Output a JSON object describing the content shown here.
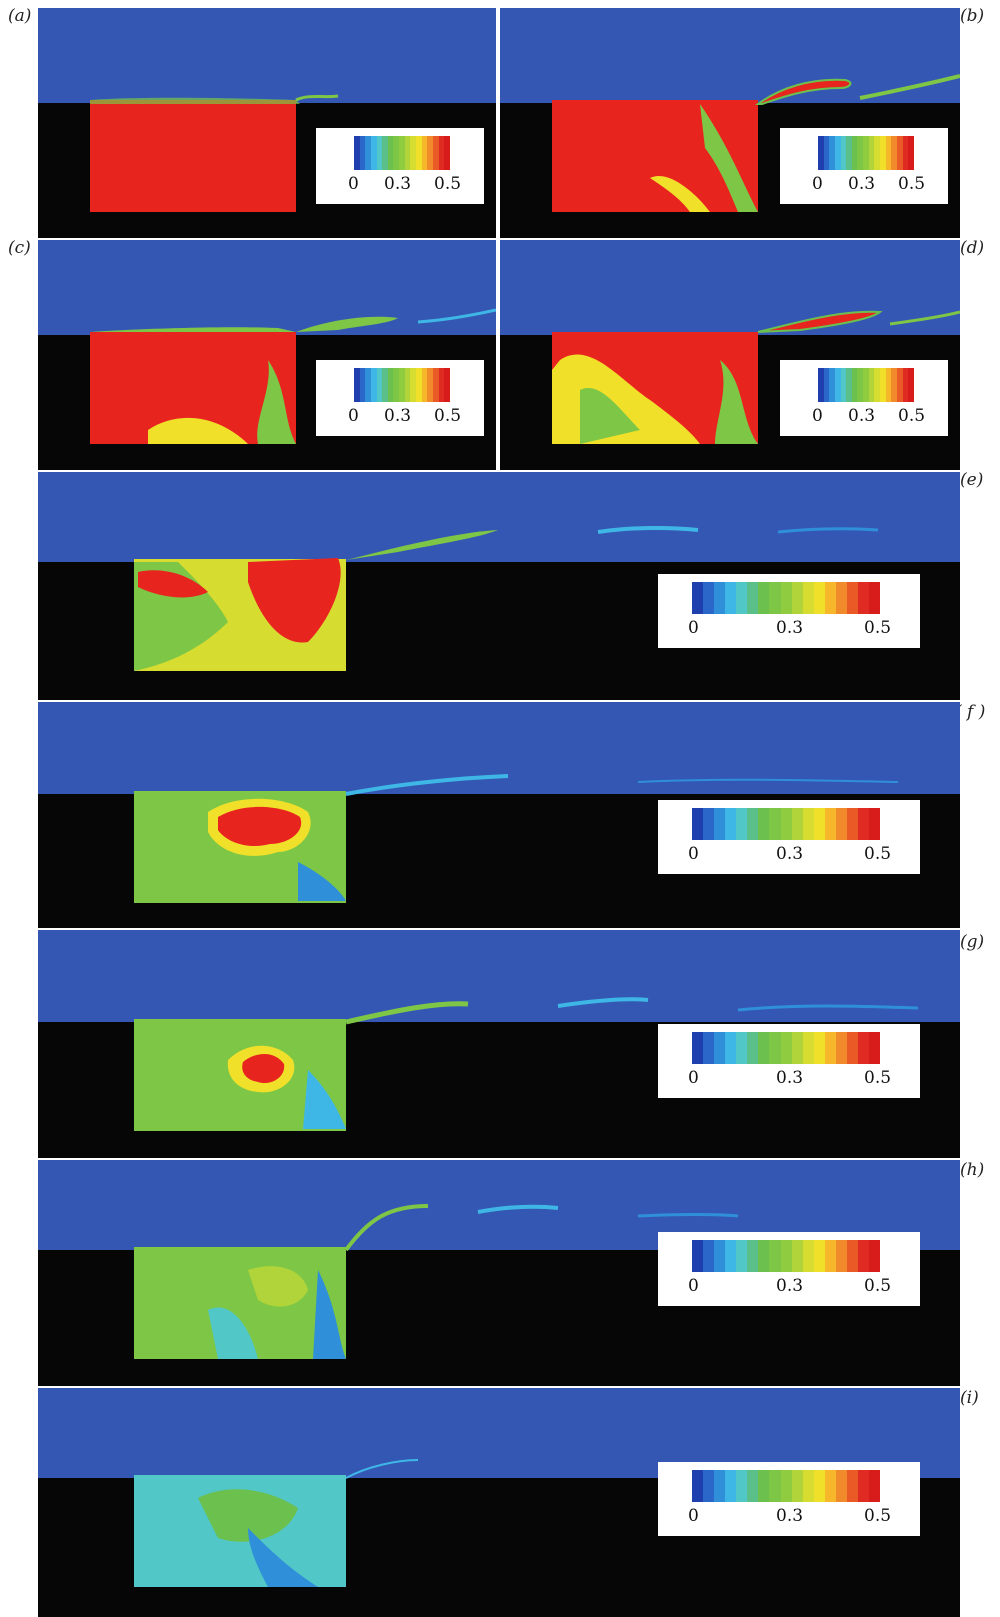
{
  "panels": {
    "a": {
      "label": "(a)"
    },
    "b": {
      "label": "(b)"
    },
    "c": {
      "label": "(c)"
    },
    "d": {
      "label": "(d)"
    },
    "e": {
      "label": "(e)"
    },
    "f": {
      "label": "( f )"
    },
    "g": {
      "label": "(g)"
    },
    "h": {
      "label": "(h)"
    },
    "i": {
      "label": "(i)"
    }
  },
  "colorbar": {
    "tick_min": "0",
    "tick_mid": "0.3",
    "tick_max": "0.5",
    "colors": [
      "#1f3fae",
      "#2b66c9",
      "#2f8fd8",
      "#3fb7e6",
      "#52c7c7",
      "#5bbf8a",
      "#6cc04e",
      "#7dc646",
      "#8fcc3f",
      "#b0d43a",
      "#d7dc31",
      "#f0e02a",
      "#f6b82a",
      "#f08a2a",
      "#ea5a26",
      "#e02b22",
      "#d81c1c"
    ]
  },
  "colors": {
    "fluid_background": "#3457b4",
    "solid": "#060606",
    "high": "#e8241f"
  }
}
